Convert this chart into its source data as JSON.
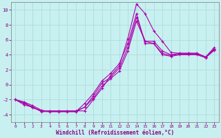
{
  "xlabel": "Windchill (Refroidissement éolien,°C)",
  "background_color": "#c8f0f0",
  "grid_color": "#b0dede",
  "line_color": "#aa00aa",
  "xlim": [
    -0.5,
    23.5
  ],
  "ylim": [
    -5,
    11
  ],
  "xticks": [
    0,
    1,
    2,
    3,
    4,
    5,
    6,
    7,
    8,
    9,
    10,
    11,
    12,
    13,
    14,
    15,
    16,
    17,
    18,
    19,
    20,
    21,
    22,
    23
  ],
  "yticks": [
    -4,
    -2,
    0,
    2,
    4,
    6,
    8,
    10
  ],
  "line1_x": [
    0,
    1,
    2,
    3,
    4,
    5,
    6,
    7,
    8,
    9,
    10,
    11,
    12,
    13,
    14,
    15,
    16,
    17,
    18,
    19,
    20,
    21,
    22,
    23
  ],
  "line1_y": [
    -2,
    -2.7,
    -3.0,
    -3.5,
    -3.5,
    -3.5,
    -3.5,
    -3.5,
    -3.5,
    -2.0,
    -0.5,
    1.2,
    2.5,
    6.2,
    10.8,
    9.5,
    7.2,
    5.8,
    4.3,
    4.2,
    4.2,
    4.2,
    3.7,
    5.0
  ],
  "line2_x": [
    0,
    1,
    2,
    3,
    4,
    5,
    6,
    7,
    8,
    9,
    10,
    11,
    12,
    13,
    14,
    15,
    16,
    17,
    18,
    19,
    20,
    21,
    22,
    23
  ],
  "line2_y": [
    -2,
    -2.5,
    -3.1,
    -3.5,
    -3.5,
    -3.5,
    -3.5,
    -3.5,
    -3.0,
    -1.8,
    -0.2,
    0.8,
    1.8,
    4.5,
    8.5,
    5.8,
    5.8,
    4.5,
    4.0,
    4.2,
    4.2,
    4.2,
    3.7,
    4.8
  ],
  "line3_x": [
    0,
    1,
    2,
    3,
    4,
    5,
    6,
    7,
    8,
    9,
    10,
    11,
    12,
    13,
    14,
    15,
    16,
    17,
    18,
    19,
    20,
    21,
    22,
    23
  ],
  "line3_y": [
    -2,
    -2.4,
    -3.0,
    -3.6,
    -3.6,
    -3.6,
    -3.6,
    -3.6,
    -3.0,
    -1.5,
    0.2,
    1.0,
    2.2,
    5.0,
    9.0,
    5.8,
    5.5,
    4.2,
    3.9,
    4.1,
    4.1,
    4.1,
    3.7,
    4.7
  ],
  "line4_x": [
    0,
    1,
    2,
    3,
    4,
    5,
    6,
    7,
    8,
    9,
    10,
    11,
    12,
    13,
    14,
    15,
    16,
    17,
    18,
    19,
    20,
    21,
    22,
    23
  ],
  "line4_y": [
    -2,
    -2.3,
    -2.8,
    -3.4,
    -3.6,
    -3.6,
    -3.6,
    -3.6,
    -2.5,
    -1.2,
    0.5,
    1.5,
    2.8,
    5.5,
    9.5,
    5.5,
    5.5,
    4.0,
    3.8,
    4.0,
    4.0,
    4.0,
    3.6,
    4.6
  ]
}
